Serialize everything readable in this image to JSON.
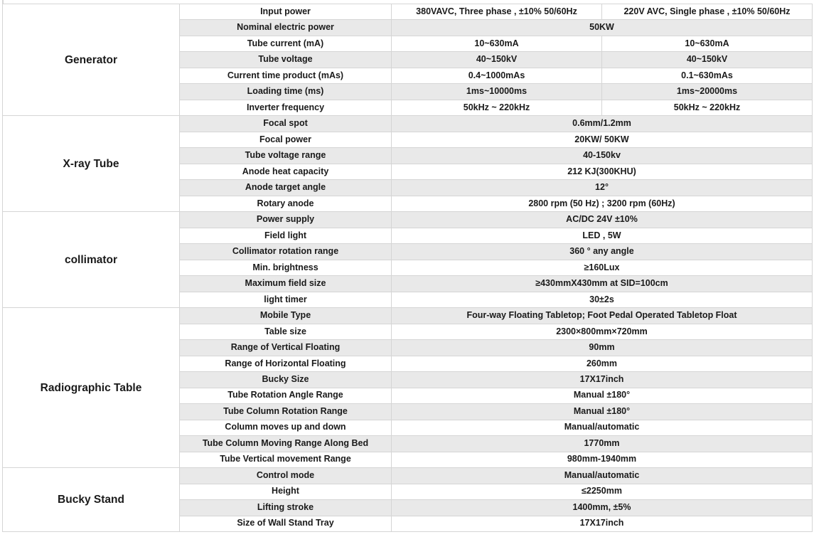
{
  "document": {
    "kind": "x-ray-system-specification-table",
    "theme": {
      "stripe_color": "#e9e9e9",
      "border_color": "#d5d5d5",
      "text_color": "#1a1a1a",
      "background_color": "#ffffff"
    }
  },
  "table": {
    "sections": [
      {
        "category": "Generator",
        "rows": [
          {
            "param": "Input power",
            "values": [
              "380VAVC, Three phase , ±10% 50/60Hz",
              "220V AVC, Single phase , ±10% 50/60Hz"
            ]
          },
          {
            "param": "Nominal electric power",
            "values": [
              "50KW"
            ]
          },
          {
            "param": "Tube current (mA)",
            "values": [
              "10~630mA",
              "10~630mA"
            ]
          },
          {
            "param": "Tube voltage",
            "values": [
              "40~150kV",
              "40~150kV"
            ]
          },
          {
            "param": "Current time product (mAs)",
            "values": [
              "0.4~1000mAs",
              "0.1~630mAs"
            ]
          },
          {
            "param": "Loading time (ms)",
            "values": [
              "1ms~10000ms",
              "1ms~20000ms"
            ]
          },
          {
            "param": "Inverter frequency",
            "values": [
              "50kHz ~ 220kHz",
              "50kHz ~ 220kHz"
            ]
          }
        ]
      },
      {
        "category": "X-ray Tube",
        "rows": [
          {
            "param": "Focal spot",
            "values": [
              "0.6mm/1.2mm"
            ]
          },
          {
            "param": "Focal power",
            "values": [
              "20KW/ 50KW"
            ]
          },
          {
            "param": "Tube voltage range",
            "values": [
              "40-150kv"
            ]
          },
          {
            "param": "Anode heat capacity",
            "values": [
              "212 KJ(300KHU)"
            ]
          },
          {
            "param": "Anode target angle",
            "values": [
              "12°"
            ]
          },
          {
            "param": "Rotary anode",
            "values": [
              "2800 rpm (50 Hz) ; 3200 rpm (60Hz)"
            ]
          }
        ]
      },
      {
        "category": "collimator",
        "rows": [
          {
            "param": "Power supply",
            "values": [
              "AC/DC 24V ±10%"
            ]
          },
          {
            "param": "Field light",
            "values": [
              "LED , 5W"
            ]
          },
          {
            "param": "Collimator rotation range",
            "values": [
              "360 ° any angle"
            ]
          },
          {
            "param": "Min. brightness",
            "values": [
              "≥160Lux"
            ]
          },
          {
            "param": "Maximum field size",
            "values": [
              "≥430mmX430mm at SID=100cm"
            ]
          },
          {
            "param": "light timer",
            "values": [
              "30±2s"
            ]
          }
        ]
      },
      {
        "category": "Radiographic Table",
        "rows": [
          {
            "param": "Mobile Type",
            "values": [
              "Four-way Floating Tabletop;  Foot Pedal Operated Tabletop Float"
            ]
          },
          {
            "param": "Table size",
            "values": [
              "2300×800mm×720mm"
            ]
          },
          {
            "param": "Range of Vertical Floating",
            "values": [
              "90mm"
            ]
          },
          {
            "param": "Range of Horizontal Floating",
            "values": [
              "260mm"
            ]
          },
          {
            "param": "Bucky Size",
            "values": [
              "17X17inch"
            ]
          },
          {
            "param": "Tube  Rotation Angle Range",
            "values": [
              "Manual ±180°"
            ]
          },
          {
            "param": "Tube Column Rotation Range",
            "values": [
              "Manual ±180°"
            ]
          },
          {
            "param": "Column moves up and down",
            "values": [
              "Manual/automatic"
            ]
          },
          {
            "param": "Tube Column Moving Range Along Bed",
            "values": [
              "1770mm"
            ]
          },
          {
            "param": "Tube Vertical movement Range",
            "values": [
              "980mm-1940mm"
            ]
          }
        ]
      },
      {
        "category": "Bucky Stand",
        "rows": [
          {
            "param": "Control mode",
            "values": [
              "Manual/automatic"
            ]
          },
          {
            "param": "Height",
            "values": [
              "≤2250mm"
            ]
          },
          {
            "param": "Lifting stroke",
            "values": [
              "1400mm, ±5%"
            ]
          },
          {
            "param": "Size of Wall Stand Tray",
            "values": [
              "17X17inch"
            ]
          }
        ]
      }
    ]
  }
}
